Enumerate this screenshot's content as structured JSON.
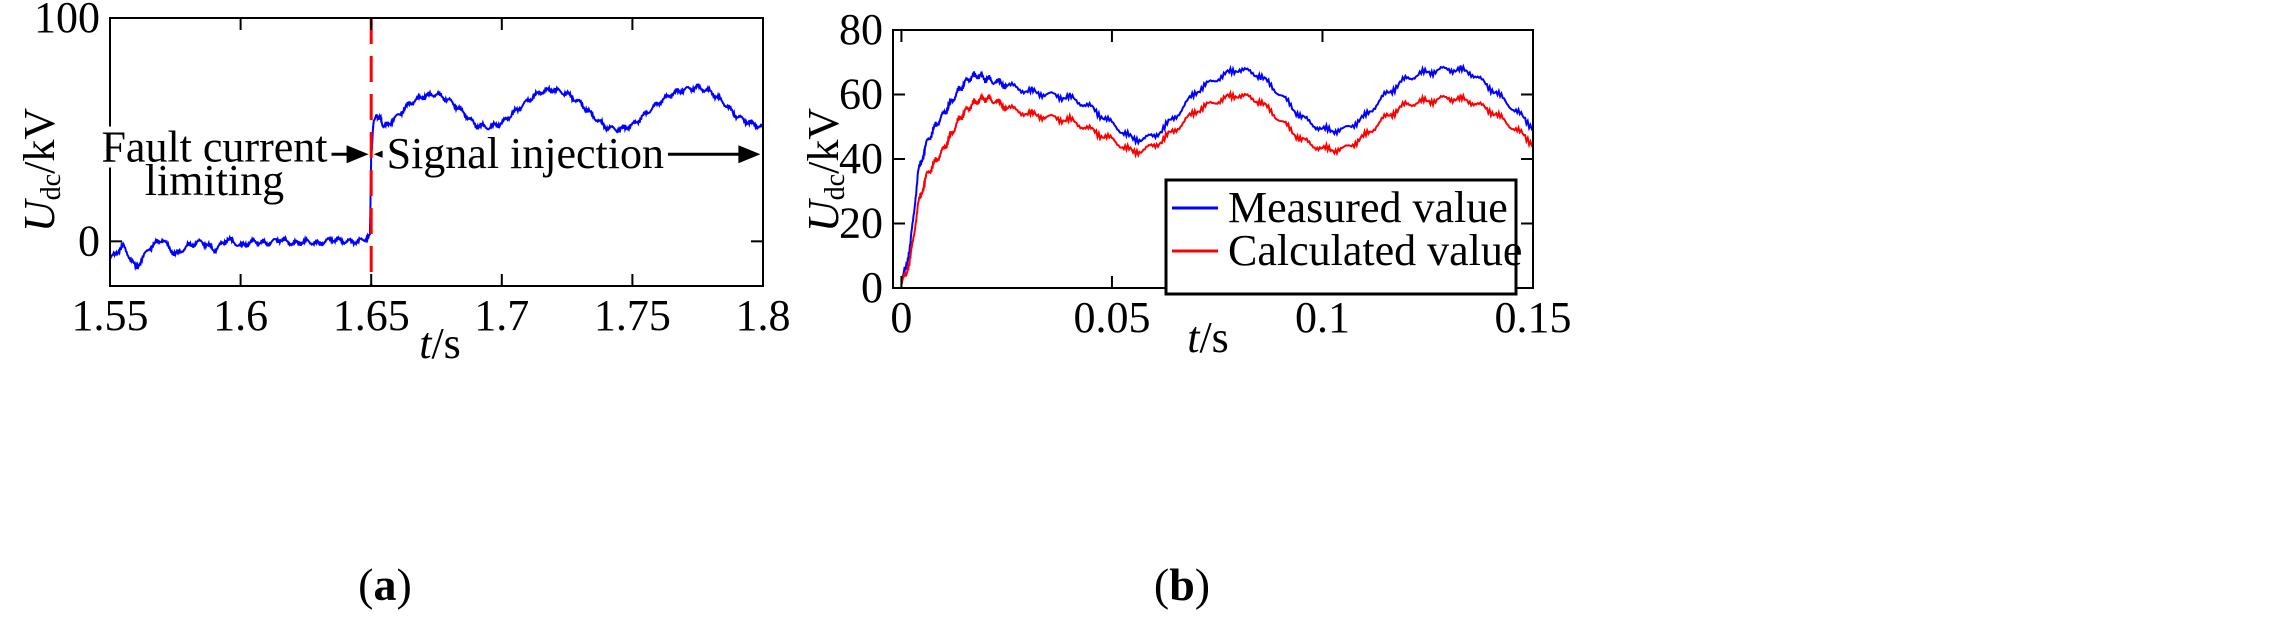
{
  "figure": {
    "panels": [
      "a",
      "b"
    ]
  },
  "chart_data": [
    {
      "type": "line",
      "panel_label": "a",
      "title": "",
      "xlabel": {
        "italic": "t",
        "rest": "/s"
      },
      "ylabel": {
        "main": "U",
        "sub": "dc",
        "rest": "/kV"
      },
      "xlim": [
        1.55,
        1.8
      ],
      "ylim": [
        -20,
        100
      ],
      "xticks": [
        1.55,
        1.6,
        1.65,
        1.7,
        1.75,
        1.8
      ],
      "xtick_labels": [
        "1.55",
        "1.6",
        "1.65",
        "1.7",
        "1.75",
        "1.8"
      ],
      "yticks": [
        0,
        100
      ],
      "ytick_labels": [
        "0",
        "100"
      ],
      "grid": false,
      "series": [
        {
          "name": "Udc",
          "color": "#0000ff",
          "x": [
            1.55,
            1.555,
            1.56,
            1.565,
            1.57,
            1.575,
            1.58,
            1.585,
            1.59,
            1.595,
            1.6,
            1.605,
            1.61,
            1.615,
            1.62,
            1.625,
            1.63,
            1.635,
            1.64,
            1.645,
            1.6495,
            1.65,
            1.651,
            1.653,
            1.655,
            1.66,
            1.665,
            1.67,
            1.675,
            1.68,
            1.685,
            1.69,
            1.695,
            1.7,
            1.705,
            1.71,
            1.715,
            1.72,
            1.725,
            1.73,
            1.735,
            1.74,
            1.745,
            1.75,
            1.755,
            1.76,
            1.765,
            1.77,
            1.775,
            1.78,
            1.785,
            1.79,
            1.795,
            1.8
          ],
          "y": [
            -8,
            -2,
            -12,
            -3,
            1,
            -6,
            -2,
            0,
            -4,
            1,
            -2,
            0,
            -1,
            1,
            -1,
            0,
            -1,
            1,
            0,
            0,
            2,
            38,
            55,
            56,
            51,
            56,
            62,
            65,
            66,
            63,
            58,
            52,
            51,
            53,
            58,
            63,
            67,
            68,
            66,
            62,
            56,
            51,
            50,
            52,
            57,
            62,
            66,
            68,
            69,
            67,
            62,
            56,
            53,
            51
          ]
        }
      ],
      "vline": {
        "x": 1.65,
        "color": "#ff0000",
        "style": "dashed"
      },
      "annotations": [
        {
          "text": "Fault current",
          "x": 1.59,
          "y": 42
        },
        {
          "text": "limiting",
          "x": 1.59,
          "y": 27
        },
        {
          "text": "Signal injection",
          "x": 1.709,
          "y": 39
        }
      ],
      "arrows": [
        {
          "from": 1.551,
          "to": 1.649,
          "y": 39
        },
        {
          "from": 1.651,
          "to": 1.799,
          "y": 39
        }
      ]
    },
    {
      "type": "line",
      "panel_label": "b",
      "title": "",
      "xlabel": {
        "italic": "t",
        "rest": "/s"
      },
      "ylabel": {
        "main": "U",
        "sub": "dc",
        "rest": "/kV"
      },
      "xlim": [
        -0.002,
        0.15
      ],
      "ylim": [
        0,
        80
      ],
      "xticks": [
        0,
        0.05,
        0.1,
        0.15
      ],
      "xtick_labels": [
        "0",
        "0.05",
        "0.1",
        "0.15"
      ],
      "yticks": [
        0,
        20,
        40,
        60,
        80
      ],
      "ytick_labels": [
        "0",
        "20",
        "40",
        "60",
        "80"
      ],
      "grid": false,
      "legend": {
        "placement": "bottom-right",
        "entries": [
          "Measured value",
          "Calculated value"
        ]
      },
      "series": [
        {
          "name": "Measured value",
          "color": "#0000ff",
          "x": [
            0,
            0.002,
            0.004,
            0.006,
            0.008,
            0.01,
            0.012,
            0.014,
            0.016,
            0.018,
            0.02,
            0.022,
            0.025,
            0.03,
            0.035,
            0.04,
            0.045,
            0.05,
            0.055,
            0.06,
            0.065,
            0.07,
            0.075,
            0.08,
            0.085,
            0.09,
            0.095,
            0.1,
            0.105,
            0.11,
            0.115,
            0.12,
            0.125,
            0.13,
            0.135,
            0.14,
            0.145,
            0.15
          ],
          "y": [
            1,
            12,
            36,
            45,
            50,
            54,
            58,
            62,
            65,
            66,
            65,
            64,
            63,
            61,
            60,
            59,
            56,
            51,
            46,
            47,
            53,
            61,
            65,
            68,
            66,
            60,
            53,
            49,
            49,
            53,
            60,
            65,
            67,
            68,
            67,
            62,
            56,
            50
          ]
        },
        {
          "name": "Calculated value",
          "color": "#ff0000",
          "x": [
            0,
            0.002,
            0.004,
            0.006,
            0.008,
            0.01,
            0.012,
            0.014,
            0.016,
            0.018,
            0.02,
            0.022,
            0.025,
            0.03,
            0.035,
            0.04,
            0.045,
            0.05,
            0.055,
            0.06,
            0.065,
            0.07,
            0.075,
            0.08,
            0.085,
            0.09,
            0.095,
            0.1,
            0.105,
            0.11,
            0.115,
            0.12,
            0.125,
            0.13,
            0.135,
            0.14,
            0.145,
            0.15
          ],
          "y": [
            1,
            8,
            26,
            35,
            39,
            43,
            48,
            53,
            56,
            58,
            59,
            58,
            56,
            54,
            53,
            52,
            49,
            46,
            42,
            44,
            49,
            55,
            58,
            60,
            58,
            52,
            46,
            43,
            43,
            47,
            53,
            57,
            58,
            59,
            58,
            55,
            50,
            45
          ]
        }
      ]
    }
  ]
}
